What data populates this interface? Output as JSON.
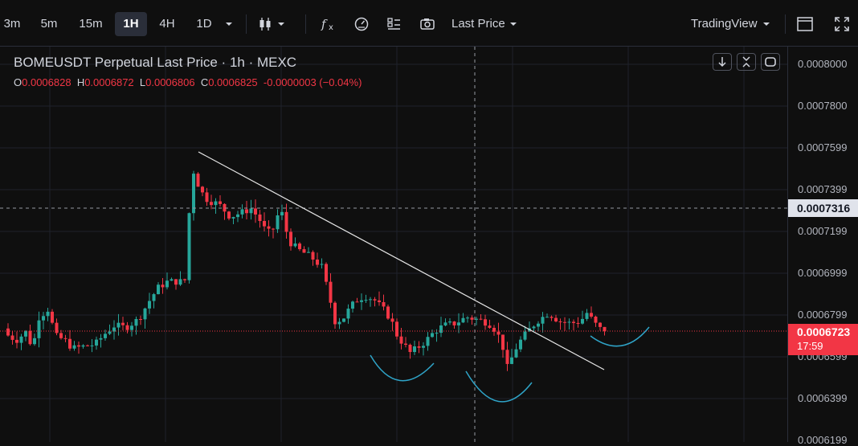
{
  "toolbar": {
    "intervals": [
      "3m",
      "5m",
      "15m",
      "1H",
      "4H",
      "1D"
    ],
    "active_interval": "1H",
    "price_type": "Last Price",
    "brand": "TradingView"
  },
  "legend": {
    "title": "BOMEUSDT Perpetual Last Price · 1h · MEXC",
    "open_label": "O",
    "open": "0.0006828",
    "high_label": "H",
    "high": "0.0006872",
    "low_label": "L",
    "low": "0.0006806",
    "close_label": "C",
    "close": "0.0006825",
    "change": "-0.0000003 (−0.04%)"
  },
  "price_axis": {
    "labels": [
      "0.0008000",
      "0.0007800",
      "0.0007599",
      "0.0007399",
      "0.0007199",
      "0.0006999",
      "0.0006799",
      "0.0006599",
      "0.0006399",
      "0.0006199"
    ],
    "crosshair_price": "0.0007316",
    "last_price": "0.0006723",
    "countdown": "17:59"
  },
  "colors": {
    "up": "#26a69a",
    "down": "#f23645",
    "background": "#0f0f0f",
    "grid": "#1f222b",
    "annotation_curve": "#2fa4c8",
    "trendline": "#e8e8e8"
  }
}
